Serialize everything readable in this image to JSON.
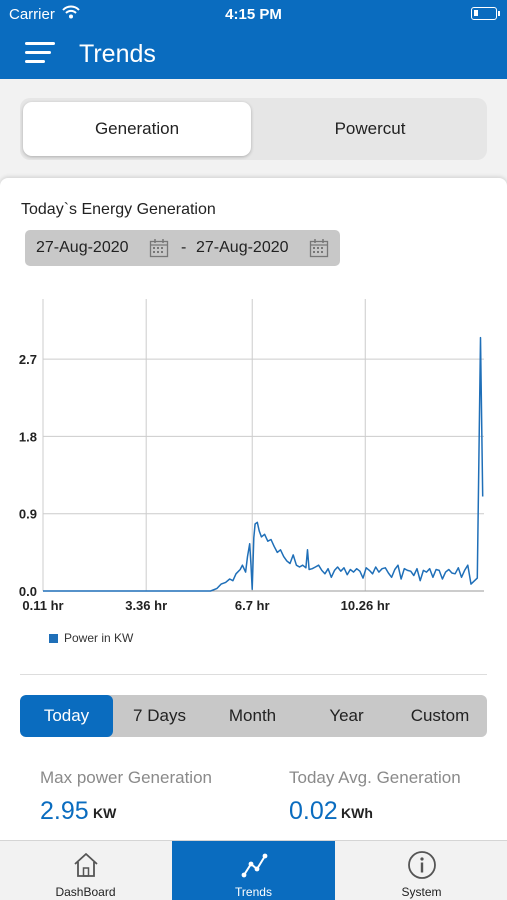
{
  "status": {
    "carrier": "Carrier",
    "time": "4:15 PM"
  },
  "header": {
    "title": "Trends"
  },
  "top_tabs": [
    {
      "label": "Generation",
      "active": true
    },
    {
      "label": "Powercut",
      "active": false
    }
  ],
  "card": {
    "title": "Today`s Energy Generation",
    "date_from": "27-Aug-2020",
    "date_separator": "-",
    "date_to": "27-Aug-2020"
  },
  "range_tabs": [
    {
      "label": "Today",
      "active": true
    },
    {
      "label": "7 Days",
      "active": false
    },
    {
      "label": "Month",
      "active": false
    },
    {
      "label": "Year",
      "active": false
    },
    {
      "label": "Custom",
      "active": false
    }
  ],
  "stats": {
    "max": {
      "label": "Max power Generation",
      "value": "2.95",
      "unit": "KW"
    },
    "avg": {
      "label": "Today Avg. Generation",
      "value": "0.02",
      "unit": "KWh"
    }
  },
  "bottom_tabs": [
    {
      "label": "DashBoard",
      "icon": "home-icon",
      "active": false
    },
    {
      "label": "Trends",
      "icon": "trend-line-icon",
      "active": true
    },
    {
      "label": "System",
      "icon": "info-icon",
      "active": false
    }
  ],
  "colors": {
    "primary": "#0a6cbf",
    "series": "#1f6fb8",
    "grid": "#cccccc"
  },
  "chart_data": {
    "type": "line",
    "title": "",
    "xlabel": "",
    "ylabel": "",
    "x_unit": "hr",
    "x_ticks": [
      "0.11 hr",
      "3.36 hr",
      "6.7 hr",
      "10.26 hr"
    ],
    "x_tick_values": [
      0.11,
      3.36,
      6.7,
      10.26
    ],
    "y_ticks": [
      "0.0",
      "0.9",
      "1.8",
      "2.7"
    ],
    "y_tick_values": [
      0,
      0.9,
      1.8,
      2.7
    ],
    "xlim": [
      0.11,
      14.0
    ],
    "ylim": [
      0,
      3.4
    ],
    "grid": true,
    "legend": "bottom-left",
    "series": [
      {
        "name": "Power in KW",
        "x": [
          0.11,
          3.36,
          5.39,
          5.59,
          5.72,
          5.86,
          5.99,
          6.09,
          6.19,
          6.32,
          6.39,
          6.49,
          6.55,
          6.62,
          6.66,
          6.7,
          6.75,
          6.79,
          6.86,
          6.92,
          6.99,
          7.09,
          7.19,
          7.29,
          7.39,
          7.49,
          7.59,
          7.69,
          7.79,
          7.89,
          7.99,
          8.09,
          8.19,
          8.29,
          8.39,
          8.44,
          8.49,
          8.59,
          8.69,
          8.79,
          8.89,
          8.99,
          9.09,
          9.19,
          9.29,
          9.39,
          9.49,
          9.59,
          9.69,
          9.79,
          9.89,
          9.99,
          10.09,
          10.19,
          10.29,
          10.39,
          10.49,
          10.59,
          10.69,
          10.79,
          10.89,
          10.99,
          11.09,
          11.19,
          11.29,
          11.39,
          11.49,
          11.59,
          11.69,
          11.79,
          11.89,
          11.99,
          12.09,
          12.19,
          12.29,
          12.39,
          12.49,
          12.59,
          12.69,
          12.79,
          12.89,
          12.99,
          13.09,
          13.19,
          13.29,
          13.39,
          13.49,
          13.59,
          13.79,
          13.89,
          13.96
        ],
        "values": [
          0.0,
          0.0,
          0.0,
          0.03,
          0.08,
          0.1,
          0.14,
          0.12,
          0.2,
          0.25,
          0.3,
          0.22,
          0.4,
          0.55,
          0.3,
          0.02,
          0.62,
          0.78,
          0.8,
          0.7,
          0.63,
          0.66,
          0.58,
          0.6,
          0.52,
          0.45,
          0.48,
          0.4,
          0.35,
          0.32,
          0.42,
          0.3,
          0.28,
          0.3,
          0.27,
          0.48,
          0.25,
          0.26,
          0.28,
          0.3,
          0.24,
          0.2,
          0.26,
          0.16,
          0.24,
          0.28,
          0.23,
          0.27,
          0.19,
          0.25,
          0.22,
          0.26,
          0.23,
          0.15,
          0.27,
          0.24,
          0.2,
          0.28,
          0.22,
          0.26,
          0.27,
          0.21,
          0.16,
          0.25,
          0.3,
          0.14,
          0.26,
          0.24,
          0.23,
          0.18,
          0.26,
          0.12,
          0.24,
          0.22,
          0.26,
          0.16,
          0.25,
          0.24,
          0.14,
          0.22,
          0.25,
          0.21,
          0.2,
          0.27,
          0.16,
          0.24,
          0.3,
          0.08,
          0.15,
          2.95,
          1.1
        ]
      }
    ]
  }
}
